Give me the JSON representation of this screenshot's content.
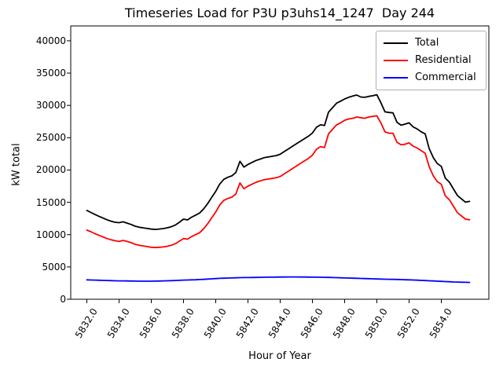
{
  "chart_data": {
    "type": "line",
    "title": "Timeseries Load for P3U p3uhs14_1247  Day 244",
    "xlabel": "Hour of Year",
    "ylabel": "kW total",
    "grid": false,
    "legend_position": "upper right",
    "xlim": [
      5831.0,
      5856.95
    ],
    "ylim": [
      0,
      42300
    ],
    "xticks": [
      5832,
      5834,
      5836,
      5838,
      5840,
      5842,
      5844,
      5846,
      5848,
      5850,
      5852,
      5854
    ],
    "xtick_labels": [
      "5832.0",
      "5834.0",
      "5836.0",
      "5838.0",
      "5840.0",
      "5842.0",
      "5844.0",
      "5846.0",
      "5848.0",
      "5850.0",
      "5852.0",
      "5854.0"
    ],
    "yticks": [
      0,
      5000,
      10000,
      15000,
      20000,
      25000,
      30000,
      35000,
      40000
    ],
    "ytick_labels": [
      "0",
      "5000",
      "10000",
      "15000",
      "20000",
      "25000",
      "30000",
      "35000",
      "40000"
    ],
    "x_start": 5832.0,
    "x_step": 0.25,
    "series": [
      {
        "name": "Total",
        "color": "#000000",
        "values": [
          13750,
          13430,
          13110,
          12840,
          12570,
          12300,
          12080,
          11910,
          11850,
          11990,
          11780,
          11570,
          11310,
          11150,
          11050,
          10950,
          10850,
          10800,
          10870,
          10940,
          11060,
          11230,
          11500,
          11930,
          12400,
          12280,
          12700,
          13020,
          13350,
          13980,
          14820,
          15760,
          16700,
          17830,
          18560,
          18880,
          19100,
          19620,
          21350,
          20450,
          20860,
          21170,
          21480,
          21690,
          21900,
          22010,
          22120,
          22230,
          22440,
          22850,
          23250,
          23650,
          24050,
          24450,
          24840,
          25230,
          25720,
          26610,
          27000,
          26890,
          28950,
          29650,
          30350,
          30650,
          31000,
          31250,
          31450,
          31600,
          31300,
          31250,
          31400,
          31500,
          31650,
          30420,
          29000,
          28900,
          28850,
          27400,
          26940,
          27100,
          27300,
          26680,
          26350,
          25920,
          25600,
          23300,
          21930,
          21000,
          20570,
          18740,
          18110,
          17080,
          16060,
          15540,
          15020,
          15150
        ]
      },
      {
        "name": "Residential",
        "color": "#ff0000",
        "values": [
          10700,
          10450,
          10150,
          9900,
          9650,
          9400,
          9200,
          9050,
          8950,
          9100,
          8950,
          8750,
          8500,
          8350,
          8250,
          8150,
          8050,
          8000,
          8050,
          8100,
          8200,
          8350,
          8600,
          9000,
          9400,
          9300,
          9700,
          10000,
          10300,
          10900,
          11700,
          12600,
          13500,
          14600,
          15300,
          15600,
          15800,
          16300,
          18000,
          17100,
          17500,
          17800,
          18100,
          18300,
          18500,
          18600,
          18700,
          18800,
          19000,
          19400,
          19800,
          20200,
          20600,
          21000,
          21400,
          21800,
          22300,
          23200,
          23600,
          23500,
          25600,
          26300,
          27000,
          27300,
          27700,
          27900,
          28000,
          28200,
          28100,
          28000,
          28200,
          28300,
          28400,
          27300,
          25900,
          25700,
          25700,
          24300,
          23900,
          24000,
          24200,
          23700,
          23400,
          23000,
          22600,
          20500,
          19100,
          18200,
          17800,
          16000,
          15400,
          14400,
          13400,
          12900,
          12400,
          12300
        ]
      },
      {
        "name": "Commercial",
        "color": "#0000ff",
        "values": [
          3000,
          2980,
          2960,
          2940,
          2920,
          2900,
          2880,
          2860,
          2850,
          2840,
          2830,
          2820,
          2810,
          2800,
          2800,
          2800,
          2800,
          2810,
          2820,
          2840,
          2860,
          2880,
          2900,
          2930,
          2960,
          2980,
          3000,
          3020,
          3050,
          3080,
          3120,
          3160,
          3200,
          3230,
          3260,
          3280,
          3300,
          3320,
          3340,
          3350,
          3360,
          3370,
          3380,
          3390,
          3400,
          3410,
          3420,
          3430,
          3440,
          3445,
          3450,
          3450,
          3450,
          3445,
          3440,
          3430,
          3420,
          3410,
          3400,
          3390,
          3380,
          3360,
          3340,
          3320,
          3300,
          3280,
          3260,
          3240,
          3220,
          3200,
          3180,
          3160,
          3140,
          3120,
          3100,
          3090,
          3080,
          3060,
          3040,
          3020,
          3000,
          2980,
          2950,
          2920,
          2890,
          2860,
          2830,
          2800,
          2770,
          2740,
          2710,
          2680,
          2660,
          2640,
          2620,
          2600
        ]
      }
    ]
  }
}
